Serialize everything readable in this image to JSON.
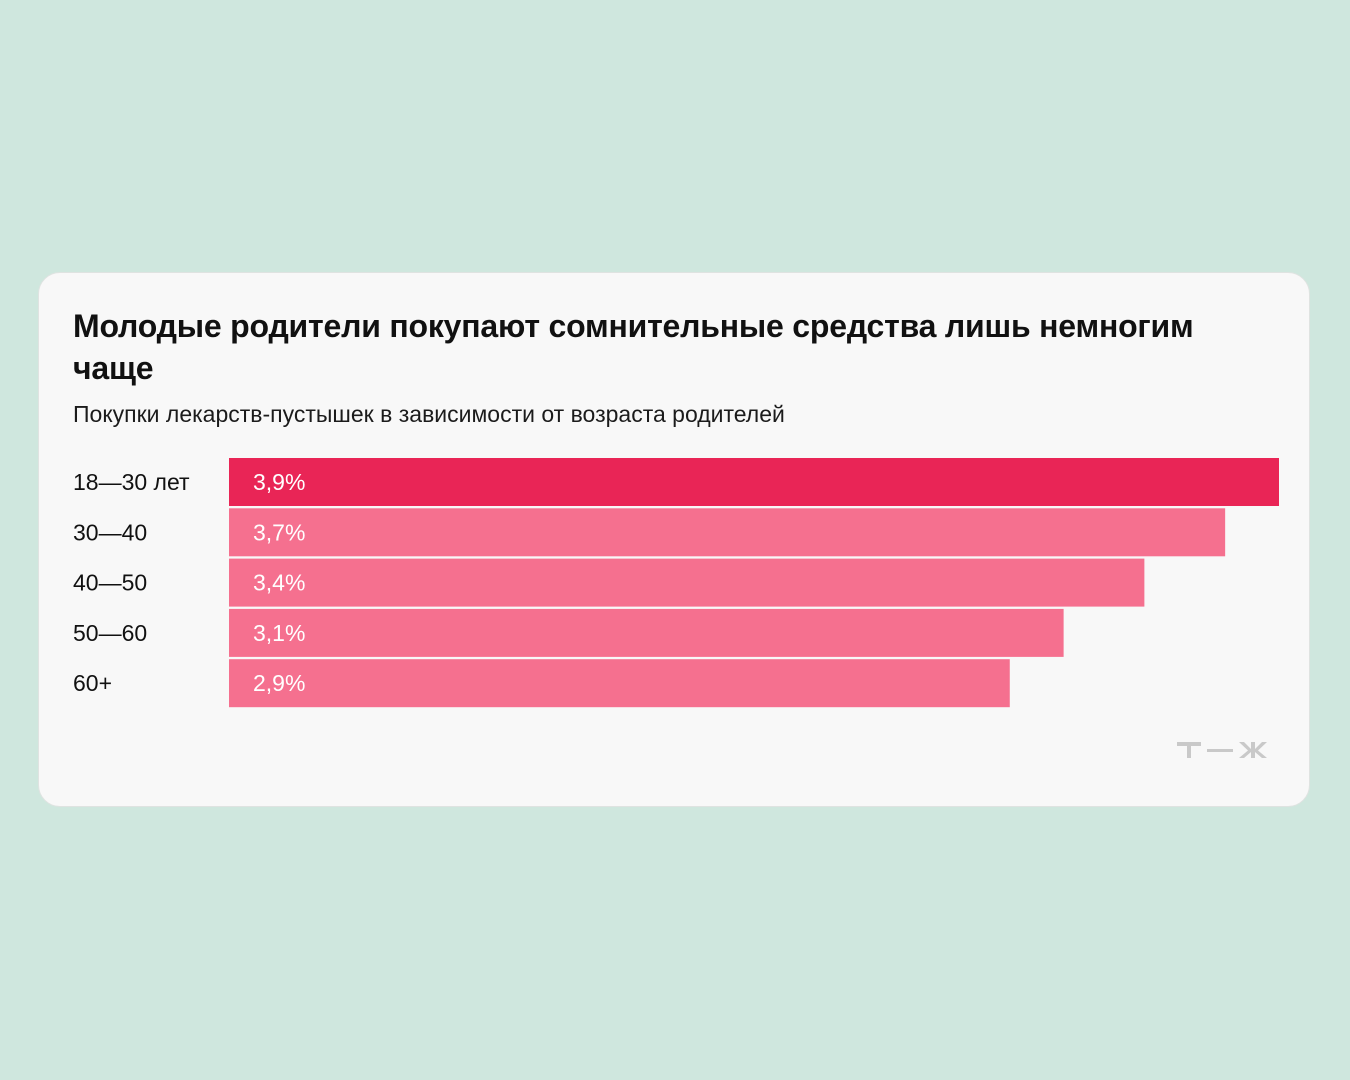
{
  "title": "Молодые родители покупают сомнительные средства лишь немногим чаще",
  "subtitle": "Покупки лекарств-пустышек в зависимости от возраста родителей",
  "colors": {
    "page_bg": "#cfe7de",
    "card_bg": "#f8f8f8",
    "highlight_bar": "#e92556",
    "regular_bar": "#f5708f",
    "logo": "#c9c9c9"
  },
  "logo": {
    "icon": "tzh-logo-icon"
  },
  "chart_data": {
    "type": "bar",
    "orientation": "horizontal",
    "title": "Молодые родители покупают сомнительные средства лишь немногим чаще",
    "subtitle": "Покупки лекарств-пустышек в зависимости от возраста родителей",
    "xlabel": "",
    "ylabel": "",
    "unit": "%",
    "xlim": [
      0,
      3.9
    ],
    "grid": false,
    "categories": [
      "18—30 лет",
      "30—40",
      "40—50",
      "50—60",
      "60+"
    ],
    "values": [
      3.9,
      3.7,
      3.4,
      3.1,
      2.9
    ],
    "value_labels": [
      "3,9%",
      "3,7%",
      "3,4%",
      "3,1%",
      "2,9%"
    ],
    "highlight_index": 0
  }
}
